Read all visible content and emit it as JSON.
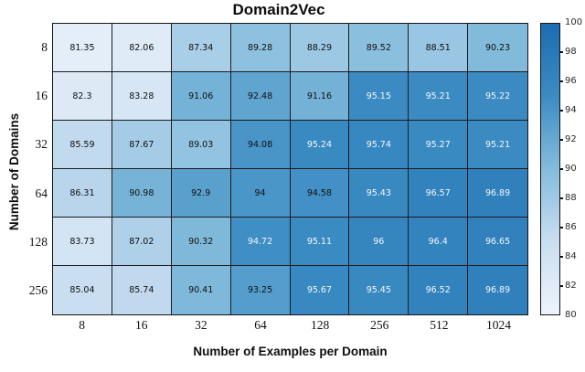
{
  "chart_data": {
    "type": "heatmap",
    "title": "Domain2Vec",
    "xlabel": "Number of Examples per Domain",
    "ylabel": "Number of Domains",
    "x_categories": [
      "8",
      "16",
      "32",
      "64",
      "128",
      "256",
      "512",
      "1024"
    ],
    "y_categories": [
      "8",
      "16",
      "32",
      "64",
      "128",
      "256"
    ],
    "values": [
      [
        81.35,
        82.06,
        87.34,
        89.28,
        88.29,
        89.52,
        88.51,
        90.23
      ],
      [
        82.3,
        83.28,
        91.06,
        92.48,
        91.16,
        95.15,
        95.21,
        95.22
      ],
      [
        85.59,
        87.67,
        89.03,
        94.08,
        95.24,
        95.74,
        95.27,
        95.21
      ],
      [
        86.31,
        90.98,
        92.9,
        94,
        94.58,
        95.43,
        96.57,
        96.89
      ],
      [
        83.73,
        87.02,
        90.32,
        94.72,
        95.11,
        96,
        96.4,
        96.65
      ],
      [
        85.04,
        85.74,
        90.41,
        93.25,
        95.67,
        95.45,
        96.52,
        96.89
      ]
    ],
    "grid_on": true,
    "colorbar": {
      "min": 80,
      "max": 100,
      "ticks": [
        100,
        98,
        96,
        94,
        92,
        90,
        88,
        86,
        84,
        82,
        80
      ],
      "position": "right"
    },
    "colormap": {
      "name": "Blues",
      "stops": [
        {
          "t": 0.0,
          "color": "#edf4fb"
        },
        {
          "t": 0.25,
          "color": "#cadef1"
        },
        {
          "t": 0.5,
          "color": "#84bcdc"
        },
        {
          "t": 0.75,
          "color": "#3c8cc3"
        },
        {
          "t": 1.0,
          "color": "#1b6cb1"
        }
      ]
    },
    "cell_text_colors": {
      "dark_text": "#101010",
      "light_text": "#f4f8fc",
      "light_text_threshold": 94.65
    }
  }
}
